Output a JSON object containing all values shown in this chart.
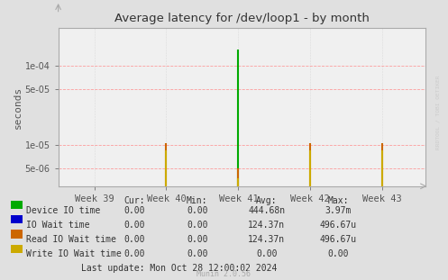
{
  "title": "Average latency for /dev/loop1 - by month",
  "ylabel": "seconds",
  "bg_color": "#e0e0e0",
  "plot_bg_color": "#f0f0f0",
  "grid_color": "#ff8888",
  "x_ticks": [
    0,
    1,
    2,
    3,
    4
  ],
  "x_tick_labels": [
    "Week 39",
    "Week 40",
    "Week 41",
    "Week 42",
    "Week 43"
  ],
  "y_min": 3e-06,
  "y_max": 0.0003,
  "y_ticks": [
    5e-06,
    1e-05,
    5e-05,
    0.0001
  ],
  "y_tick_labels": [
    "5e-06",
    "1e-05",
    "5e-05",
    "1e-04"
  ],
  "series": [
    {
      "name": "Device IO time",
      "color": "#00aa00",
      "spikes": [
        [
          2,
          0.00016
        ]
      ]
    },
    {
      "name": "IO Wait time",
      "color": "#0000cc",
      "spikes": []
    },
    {
      "name": "Read IO Wait time",
      "color": "#cc6600",
      "spikes": [
        [
          1,
          1.05e-05
        ],
        [
          2,
          5e-06
        ],
        [
          3,
          1.05e-05
        ],
        [
          4,
          1.05e-05
        ]
      ]
    },
    {
      "name": "Write IO Wait time",
      "color": "#ccaa00",
      "spikes": [
        [
          1,
          8.5e-06
        ],
        [
          2,
          3.8e-06
        ],
        [
          3,
          8.5e-06
        ],
        [
          4,
          8.5e-06
        ]
      ]
    }
  ],
  "legend_items": [
    {
      "label": "Device IO time",
      "color": "#00aa00"
    },
    {
      "label": "IO Wait time",
      "color": "#0000cc"
    },
    {
      "label": "Read IO Wait time",
      "color": "#cc6600"
    },
    {
      "label": "Write IO Wait time",
      "color": "#ccaa00"
    }
  ],
  "legend_cols": [
    {
      "header": "Cur:",
      "rows": [
        "0.00",
        "0.00",
        "0.00",
        "0.00"
      ]
    },
    {
      "header": "Min:",
      "rows": [
        "0.00",
        "0.00",
        "0.00",
        "0.00"
      ]
    },
    {
      "header": "Avg:",
      "rows": [
        "444.68n",
        "124.37n",
        "124.37n",
        "0.00"
      ]
    },
    {
      "header": "Max:",
      "rows": [
        "3.97m",
        "496.67u",
        "496.67u",
        "0.00"
      ]
    }
  ],
  "last_update": "Last update: Mon Oct 28 12:00:02 2024",
  "munin_version": "Munin 2.0.56",
  "rrdtool_label": "RRDTOOL / TOBI OETIKER"
}
